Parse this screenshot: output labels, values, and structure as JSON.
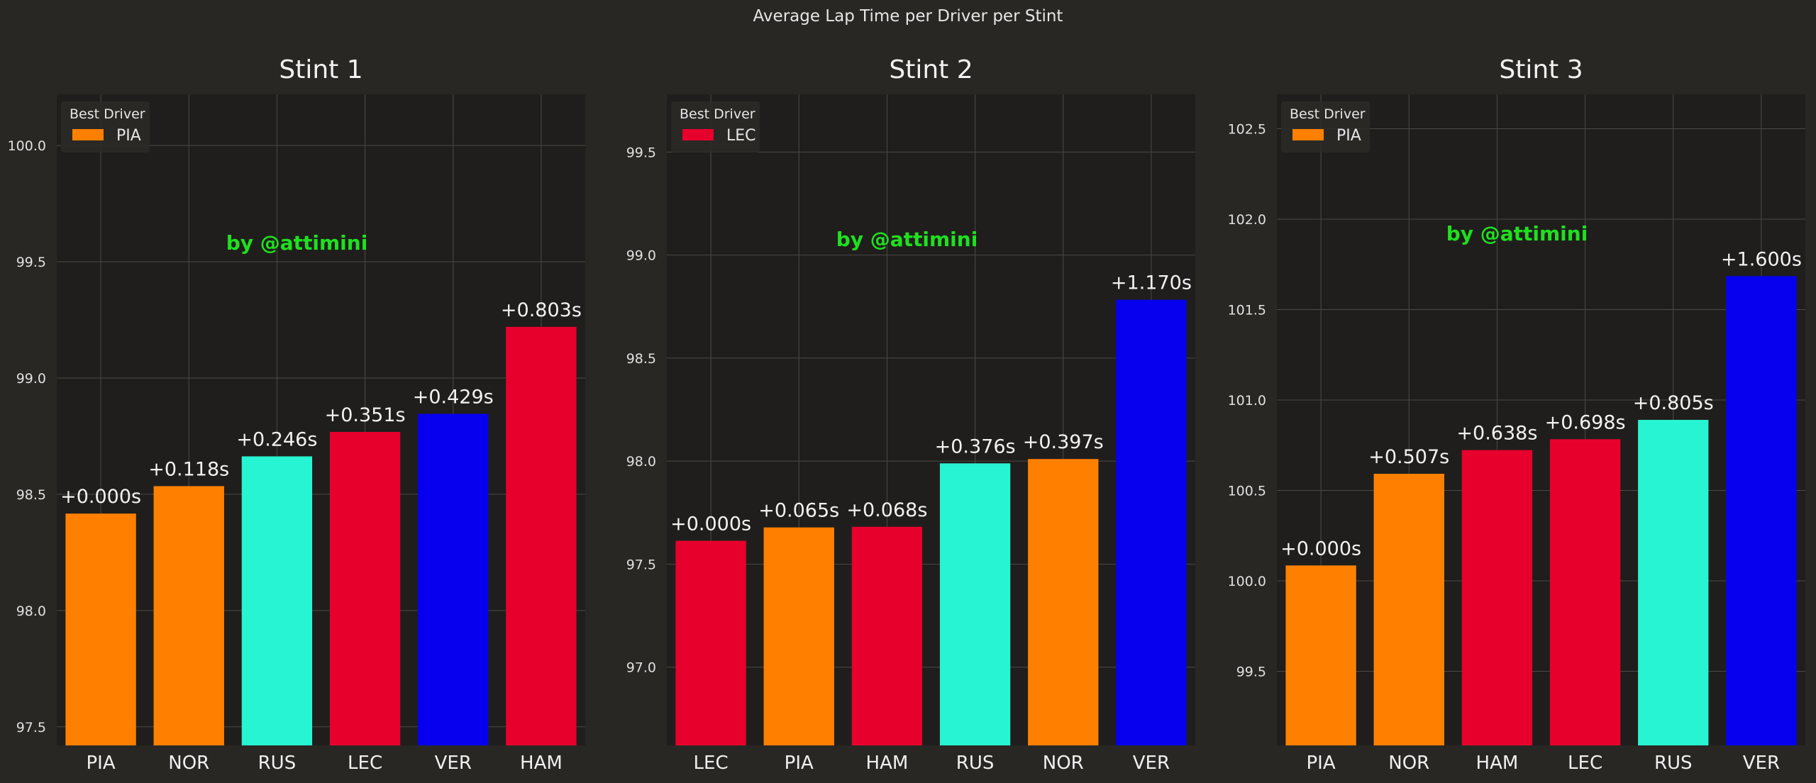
{
  "figure_title": "Average Lap Time per Driver per Stint",
  "watermark": "by @attimini",
  "legend_title": "Best Driver",
  "colors": {
    "figure_bg": "#292724",
    "axes_bg": "#1f1e1c",
    "grid": "#4a4a46",
    "legend_bg": "#2b2a27"
  },
  "chart_data": [
    {
      "type": "bar",
      "title": "Stint 1",
      "categories": [
        "PIA",
        "NOR",
        "RUS",
        "LEC",
        "VER",
        "HAM"
      ],
      "values": [
        98.417,
        98.535,
        98.663,
        98.768,
        98.846,
        99.22
      ],
      "labels": [
        "+0.000s",
        "+0.118s",
        "+0.246s",
        "+0.351s",
        "+0.429s",
        "+0.803s"
      ],
      "colors": [
        "#ff8000",
        "#ff8000",
        "#27f4d2",
        "#e8002d",
        "#0600ef",
        "#e8002d"
      ],
      "ylim": [
        97.42,
        100.22
      ],
      "yticks": [
        97.5,
        98.0,
        98.5,
        99.0,
        99.5,
        100.0
      ],
      "legend": {
        "label": "PIA",
        "color": "#ff8000"
      },
      "xlabel": "",
      "ylabel": "",
      "grid": true
    },
    {
      "type": "bar",
      "title": "Stint 2",
      "categories": [
        "LEC",
        "PIA",
        "HAM",
        "RUS",
        "NOR",
        "VER"
      ],
      "values": [
        97.613,
        97.678,
        97.681,
        97.989,
        98.01,
        98.783
      ],
      "labels": [
        "+0.000s",
        "+0.065s",
        "+0.068s",
        "+0.376s",
        "+0.397s",
        "+1.170s"
      ],
      "colors": [
        "#e8002d",
        "#ff8000",
        "#e8002d",
        "#27f4d2",
        "#ff8000",
        "#0600ef"
      ],
      "ylim": [
        96.62,
        99.78
      ],
      "yticks": [
        97.0,
        97.5,
        98.0,
        98.5,
        99.0,
        99.5
      ],
      "legend": {
        "label": "LEC",
        "color": "#e8002d"
      },
      "xlabel": "",
      "ylabel": "",
      "grid": true
    },
    {
      "type": "bar",
      "title": "Stint 3",
      "categories": [
        "PIA",
        "NOR",
        "HAM",
        "LEC",
        "RUS",
        "VER"
      ],
      "values": [
        100.085,
        100.592,
        100.723,
        100.783,
        100.89,
        101.685
      ],
      "labels": [
        "+0.000s",
        "+0.507s",
        "+0.638s",
        "+0.698s",
        "+0.805s",
        "+1.600s"
      ],
      "colors": [
        "#ff8000",
        "#ff8000",
        "#e8002d",
        "#e8002d",
        "#27f4d2",
        "#0600ef"
      ],
      "ylim": [
        99.09,
        102.69
      ],
      "yticks": [
        99.5,
        100.0,
        100.5,
        101.0,
        101.5,
        102.0,
        102.5
      ],
      "legend": {
        "label": "PIA",
        "color": "#ff8000"
      },
      "xlabel": "",
      "ylabel": "",
      "grid": true
    }
  ]
}
